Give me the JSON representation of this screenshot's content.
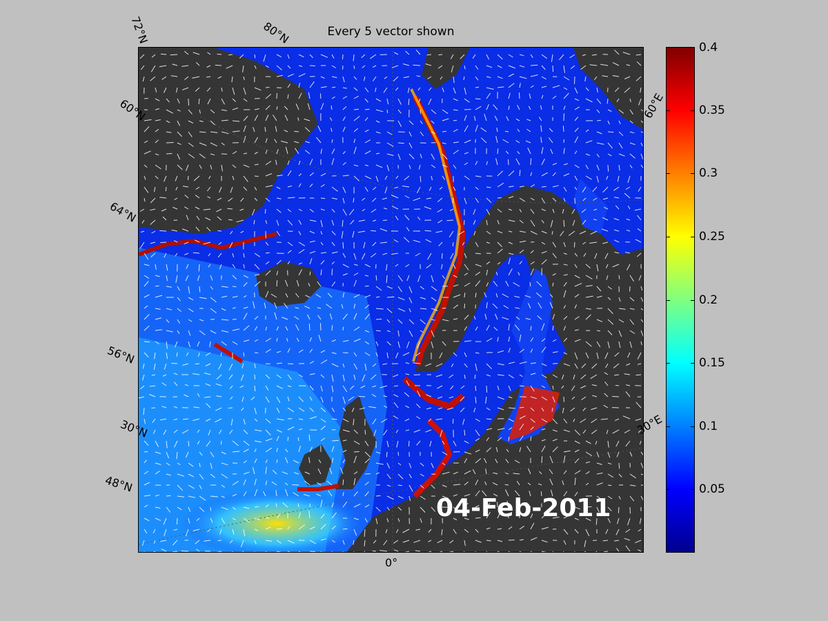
{
  "title": "Every 5 vector shown",
  "date": "04-Feb-2011",
  "colors": {
    "land": "#333333",
    "ocean_low": "#0010e0",
    "ocean_mid": "#1aa0ff",
    "ocean_high": "#ff2a00",
    "background": "#c0c0c0"
  },
  "map_labels": {
    "lat_72": "72°N",
    "lat_68a": "80°N",
    "lat_68b": "60°N",
    "lat_64": "64°N",
    "lat_56": "56°N",
    "lat_52": "30°N",
    "lat_48": "48°N",
    "lon_0": "0°",
    "lon_30e": "30°E",
    "lon_60e": "60°E"
  },
  "colorbar": {
    "min": 0,
    "max": 0.4,
    "ticks": [
      "0.4",
      "0.35",
      "0.3",
      "0.25",
      "0.2",
      "0.15",
      "0.1",
      "0.05"
    ],
    "tick_values": [
      0.4,
      0.35,
      0.3,
      0.25,
      0.2,
      0.15,
      0.1,
      0.05
    ]
  }
}
